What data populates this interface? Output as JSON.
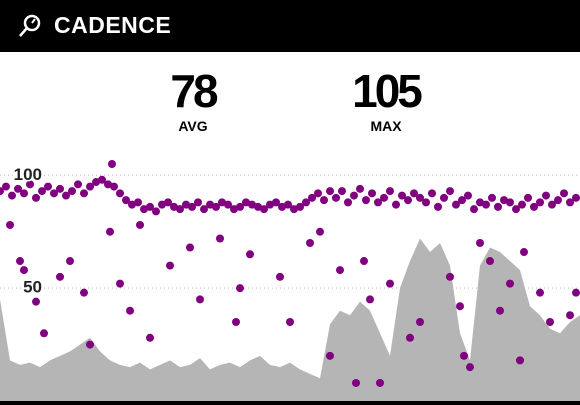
{
  "header": {
    "title": "CADENCE"
  },
  "stats": [
    {
      "value": "78",
      "label": "AVG"
    },
    {
      "value": "105",
      "label": "MAX"
    }
  ],
  "chart_data": {
    "type": "scatter",
    "xlim": [
      0,
      290
    ],
    "ylim": [
      0,
      105
    ],
    "yticks": [
      50,
      100
    ],
    "grid": true,
    "series": [
      {
        "type": "area",
        "color": "#b5b5b5",
        "x": [
          0,
          5,
          10,
          15,
          20,
          25,
          30,
          35,
          40,
          45,
          50,
          55,
          60,
          65,
          70,
          75,
          80,
          85,
          90,
          95,
          100,
          105,
          110,
          115,
          120,
          125,
          130,
          135,
          140,
          145,
          150,
          155,
          160,
          165,
          170,
          175,
          180,
          185,
          190,
          195,
          200,
          205,
          210,
          215,
          220,
          225,
          230,
          235,
          240,
          245,
          250,
          255,
          260,
          265,
          270,
          275,
          280,
          285,
          290
        ],
        "values": [
          45,
          18,
          16,
          17,
          15,
          18,
          20,
          22,
          25,
          28,
          22,
          18,
          16,
          15,
          17,
          14,
          16,
          18,
          15,
          16,
          19,
          14,
          16,
          17,
          15,
          18,
          20,
          16,
          15,
          17,
          14,
          12,
          10,
          34,
          40,
          38,
          44,
          40,
          30,
          20,
          50,
          62,
          72,
          66,
          70,
          60,
          30,
          18,
          60,
          68,
          66,
          62,
          58,
          42,
          38,
          32,
          30,
          35,
          38
        ]
      },
      {
        "type": "scatter",
        "color": "#800080",
        "x": [
          0,
          3,
          6,
          9,
          12,
          15,
          18,
          21,
          24,
          27,
          30,
          33,
          36,
          39,
          42,
          45,
          48,
          51,
          54,
          57,
          60,
          63,
          66,
          69,
          72,
          75,
          78,
          81,
          84,
          87,
          90,
          93,
          96,
          99,
          102,
          105,
          108,
          111,
          114,
          117,
          120,
          123,
          126,
          129,
          132,
          135,
          138,
          141,
          144,
          147,
          150,
          153,
          156,
          159,
          162,
          165,
          168,
          171,
          174,
          177,
          180,
          183,
          186,
          189,
          192,
          195,
          198,
          201,
          204,
          207,
          210,
          213,
          216,
          219,
          222,
          225,
          228,
          231,
          234,
          237,
          240,
          243,
          246,
          249,
          252,
          255,
          258,
          261,
          264,
          267,
          270,
          273,
          276,
          279,
          282,
          285,
          288,
          5,
          10,
          12,
          18,
          22,
          30,
          35,
          42,
          45,
          55,
          60,
          65,
          70,
          75,
          85,
          95,
          100,
          110,
          118,
          120,
          125,
          140,
          145,
          155,
          160,
          165,
          170,
          178,
          182,
          185,
          190,
          195,
          205,
          210,
          225,
          230,
          232,
          235,
          240,
          245,
          250,
          255,
          260,
          262,
          270,
          275,
          285,
          288,
          56
        ],
        "values": [
          93,
          95,
          91,
          94,
          92,
          96,
          90,
          93,
          95,
          92,
          94,
          91,
          93,
          96,
          92,
          95,
          97,
          98,
          96,
          95,
          92,
          89,
          87,
          88,
          85,
          86,
          84,
          87,
          88,
          86,
          85,
          87,
          86,
          88,
          85,
          87,
          86,
          88,
          87,
          85,
          86,
          88,
          87,
          86,
          85,
          87,
          88,
          86,
          87,
          85,
          86,
          88,
          90,
          92,
          89,
          93,
          90,
          93,
          88,
          91,
          94,
          89,
          92,
          88,
          90,
          93,
          87,
          91,
          89,
          92,
          90,
          88,
          92,
          86,
          90,
          93,
          87,
          89,
          91,
          85,
          88,
          87,
          90,
          86,
          89,
          88,
          85,
          87,
          90,
          86,
          88,
          91,
          87,
          89,
          92,
          88,
          90,
          78,
          62,
          58,
          44,
          30,
          55,
          62,
          48,
          25,
          75,
          52,
          40,
          78,
          28,
          60,
          68,
          45,
          72,
          35,
          50,
          65,
          55,
          35,
          70,
          75,
          20,
          58,
          8,
          62,
          45,
          8,
          52,
          28,
          35,
          55,
          42,
          20,
          15,
          70,
          62,
          40,
          52,
          18,
          66,
          48,
          35,
          38,
          48,
          105
        ]
      }
    ]
  }
}
